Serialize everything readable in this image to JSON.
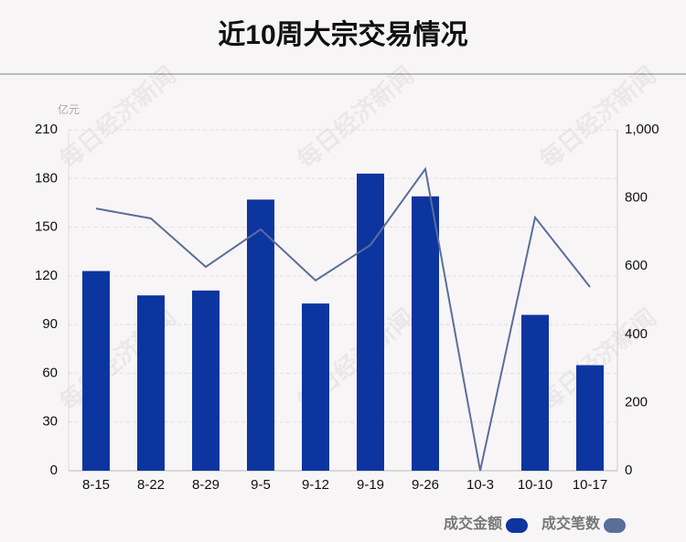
{
  "chart_data": {
    "type": "bar_line",
    "title": "近10周大宗交易情况",
    "unit": "亿元",
    "watermark": "每日经济新闻",
    "categories": [
      "8-15",
      "8-22",
      "8-29",
      "9-5",
      "9-12",
      "9-19",
      "9-26",
      "10-3",
      "10-10",
      "10-17"
    ],
    "series": [
      {
        "name": "成交金额",
        "type": "bar",
        "color": "#0d35a0",
        "values": [
          123,
          108,
          111,
          167,
          103,
          183,
          169,
          0,
          96,
          65
        ]
      },
      {
        "name": "成交笔数",
        "type": "line",
        "axis": "y2",
        "color": "#5a6e9a",
        "values": [
          769,
          740,
          598,
          708,
          558,
          662,
          885,
          0,
          743,
          539
        ]
      }
    ],
    "ylim": [
      0,
      210
    ],
    "yticks": [
      0,
      30,
      60,
      90,
      120,
      150,
      180,
      210
    ],
    "y2lim": [
      0,
      1000
    ],
    "y2ticks": [
      0,
      200,
      400,
      600,
      800,
      {
        "value": 1000,
        "label": "1,000"
      }
    ],
    "grid": true
  }
}
